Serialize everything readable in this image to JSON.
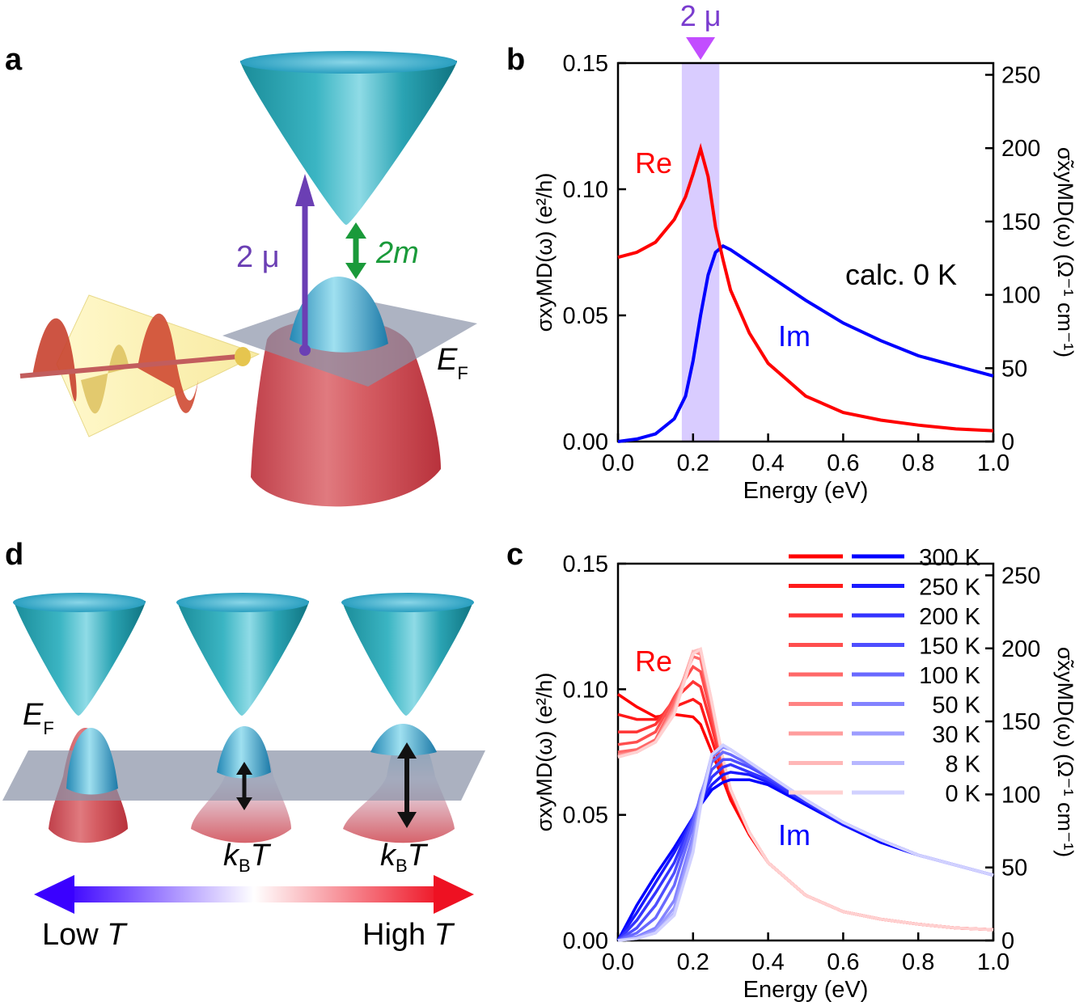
{
  "panels": {
    "a": {
      "letter": "a",
      "arrow_label_mu": "2 μ",
      "arrow_label_m": "2m",
      "fermi_label": "E",
      "fermi_sub": "F"
    },
    "b": {
      "letter": "b",
      "band_label": "2 μ",
      "annotation": "calc. 0 K"
    },
    "c": {
      "letter": "c"
    },
    "d": {
      "letter": "d",
      "fermi_label": "E",
      "fermi_sub": "F",
      "kbt_1": "k",
      "kbt_1_sub": "B",
      "kbt_1_T": "T",
      "kbt_2": "k",
      "kbt_2_sub": "B",
      "kbt_2_T": "T",
      "low_label": "Low ",
      "low_T": "T",
      "high_label": "High ",
      "high_T": "T"
    }
  },
  "colors": {
    "re": "#ff0000",
    "im": "#0000ff",
    "band": "#d9ccff",
    "purple": "#7a3ccf",
    "green": "#1a9a3a"
  },
  "chart_data": [
    {
      "panel": "b",
      "type": "line",
      "xlabel": "Energy (eV)",
      "ylabel_left": "σxyMD(ω) (e²/h)",
      "ylabel_right": "σ̃xyMD(ω) (Ω⁻¹ cm⁻¹)",
      "xlim": [
        0.0,
        1.0
      ],
      "ylim": [
        0.0,
        0.15
      ],
      "ylim_right": [
        0,
        258
      ],
      "xticks": [
        "0.0",
        "0.2",
        "0.4",
        "0.6",
        "0.8",
        "1.0"
      ],
      "yticks": [
        "0.00",
        "0.05",
        "0.10",
        "0.15"
      ],
      "yticks_right": [
        "0",
        "50",
        "100",
        "150",
        "200",
        "250"
      ],
      "shaded_band": [
        0.17,
        0.27
      ],
      "series_labels": {
        "re": "Re",
        "im": "Im"
      },
      "series": [
        {
          "name": "Re",
          "x": [
            0.0,
            0.05,
            0.1,
            0.15,
            0.18,
            0.2,
            0.22,
            0.24,
            0.26,
            0.28,
            0.3,
            0.35,
            0.4,
            0.5,
            0.6,
            0.7,
            0.8,
            0.9,
            1.0
          ],
          "y": [
            0.073,
            0.075,
            0.079,
            0.088,
            0.097,
            0.106,
            0.116,
            0.105,
            0.085,
            0.072,
            0.06,
            0.043,
            0.031,
            0.018,
            0.0115,
            0.0085,
            0.0065,
            0.005,
            0.0043
          ]
        },
        {
          "name": "Im",
          "x": [
            0.0,
            0.05,
            0.1,
            0.15,
            0.18,
            0.2,
            0.22,
            0.24,
            0.26,
            0.28,
            0.3,
            0.35,
            0.4,
            0.5,
            0.6,
            0.7,
            0.8,
            0.9,
            1.0
          ],
          "y": [
            0.0,
            0.001,
            0.003,
            0.009,
            0.018,
            0.032,
            0.05,
            0.066,
            0.075,
            0.0775,
            0.076,
            0.071,
            0.066,
            0.056,
            0.047,
            0.04,
            0.034,
            0.03,
            0.026
          ]
        }
      ]
    },
    {
      "panel": "c",
      "type": "line",
      "xlabel": "Energy (eV)",
      "ylabel_left": "σxyMD(ω) (e²/h)",
      "ylabel_right": "σ̃xyMD(ω) (Ω⁻¹ cm⁻¹)",
      "xlim": [
        0.0,
        1.0
      ],
      "ylim": [
        0.0,
        0.15
      ],
      "ylim_right": [
        0,
        258
      ],
      "xticks": [
        "0.0",
        "0.2",
        "0.4",
        "0.6",
        "0.8",
        "1.0"
      ],
      "yticks": [
        "0.00",
        "0.05",
        "0.10",
        "0.15"
      ],
      "yticks_right": [
        "0",
        "50",
        "100",
        "150",
        "200",
        "250"
      ],
      "series_labels": {
        "re": "Re",
        "im": "Im"
      },
      "legend": [
        "300 K",
        "250 K",
        "200 K",
        "150 K",
        "100 K",
        "50 K",
        "30 K",
        "8 K",
        "0 K"
      ],
      "x": [
        0.0,
        0.05,
        0.1,
        0.15,
        0.2,
        0.22,
        0.25,
        0.28,
        0.3,
        0.35,
        0.4,
        0.5,
        0.6,
        0.7,
        0.8,
        0.9,
        1.0
      ],
      "series": [
        {
          "name": "Re 300 K",
          "y": [
            0.098,
            0.093,
            0.089,
            0.09,
            0.089,
            0.086,
            0.075,
            0.064,
            0.056,
            0.042,
            0.031,
            0.018,
            0.0115,
            0.0085,
            0.0065,
            0.005,
            0.0043
          ]
        },
        {
          "name": "Re 250 K",
          "y": [
            0.09,
            0.088,
            0.088,
            0.093,
            0.096,
            0.094,
            0.08,
            0.066,
            0.058,
            0.043,
            0.031,
            0.018,
            0.0115,
            0.0085,
            0.0065,
            0.005,
            0.0043
          ]
        },
        {
          "name": "Re 200 K",
          "y": [
            0.083,
            0.083,
            0.086,
            0.096,
            0.103,
            0.101,
            0.085,
            0.068,
            0.059,
            0.043,
            0.031,
            0.018,
            0.0115,
            0.0085,
            0.0065,
            0.005,
            0.0043
          ]
        },
        {
          "name": "Re 150 K",
          "y": [
            0.078,
            0.079,
            0.083,
            0.097,
            0.109,
            0.107,
            0.089,
            0.07,
            0.06,
            0.043,
            0.031,
            0.018,
            0.0115,
            0.0085,
            0.0065,
            0.005,
            0.0043
          ]
        },
        {
          "name": "Re 100 K",
          "y": [
            0.075,
            0.076,
            0.08,
            0.095,
            0.113,
            0.112,
            0.092,
            0.071,
            0.06,
            0.043,
            0.031,
            0.018,
            0.0115,
            0.0085,
            0.0065,
            0.005,
            0.0043
          ]
        },
        {
          "name": "Re 50 K",
          "y": [
            0.074,
            0.075,
            0.079,
            0.093,
            0.115,
            0.114,
            0.094,
            0.072,
            0.06,
            0.043,
            0.031,
            0.018,
            0.0115,
            0.0085,
            0.0065,
            0.005,
            0.0043
          ]
        },
        {
          "name": "Re 30 K",
          "y": [
            0.0735,
            0.075,
            0.079,
            0.092,
            0.115,
            0.115,
            0.094,
            0.072,
            0.06,
            0.043,
            0.031,
            0.018,
            0.0115,
            0.0085,
            0.0065,
            0.005,
            0.0043
          ]
        },
        {
          "name": "Re 8 K",
          "y": [
            0.073,
            0.075,
            0.079,
            0.091,
            0.115,
            0.116,
            0.095,
            0.072,
            0.06,
            0.043,
            0.031,
            0.018,
            0.0115,
            0.0085,
            0.0065,
            0.005,
            0.0043
          ]
        },
        {
          "name": "Re 0 K",
          "y": [
            0.073,
            0.075,
            0.079,
            0.09,
            0.114,
            0.116,
            0.095,
            0.072,
            0.06,
            0.043,
            0.031,
            0.018,
            0.0115,
            0.0085,
            0.0065,
            0.005,
            0.0043
          ]
        },
        {
          "name": "Im 300 K",
          "y": [
            0.0,
            0.014,
            0.026,
            0.037,
            0.049,
            0.054,
            0.06,
            0.063,
            0.064,
            0.064,
            0.062,
            0.054,
            0.046,
            0.039,
            0.034,
            0.03,
            0.026
          ]
        },
        {
          "name": "Im 250 K",
          "y": [
            0.0,
            0.011,
            0.023,
            0.035,
            0.049,
            0.055,
            0.062,
            0.066,
            0.067,
            0.066,
            0.063,
            0.055,
            0.046,
            0.04,
            0.034,
            0.03,
            0.026
          ]
        },
        {
          "name": "Im 200 K",
          "y": [
            0.0,
            0.008,
            0.019,
            0.031,
            0.049,
            0.056,
            0.065,
            0.069,
            0.07,
            0.067,
            0.064,
            0.055,
            0.047,
            0.04,
            0.034,
            0.03,
            0.026
          ]
        },
        {
          "name": "Im 150 K",
          "y": [
            0.0,
            0.005,
            0.014,
            0.027,
            0.048,
            0.057,
            0.068,
            0.072,
            0.072,
            0.069,
            0.065,
            0.056,
            0.047,
            0.04,
            0.034,
            0.03,
            0.026
          ]
        },
        {
          "name": "Im 100 K",
          "y": [
            0.0,
            0.003,
            0.009,
            0.022,
            0.046,
            0.058,
            0.071,
            0.075,
            0.074,
            0.07,
            0.066,
            0.056,
            0.047,
            0.04,
            0.034,
            0.03,
            0.026
          ]
        },
        {
          "name": "Im 50 K",
          "y": [
            0.0,
            0.0015,
            0.005,
            0.016,
            0.042,
            0.057,
            0.073,
            0.077,
            0.076,
            0.071,
            0.066,
            0.056,
            0.047,
            0.04,
            0.034,
            0.03,
            0.026
          ]
        },
        {
          "name": "Im 30 K",
          "y": [
            0.0,
            0.001,
            0.004,
            0.013,
            0.039,
            0.056,
            0.074,
            0.0775,
            0.076,
            0.071,
            0.066,
            0.056,
            0.047,
            0.04,
            0.034,
            0.03,
            0.026
          ]
        },
        {
          "name": "Im 8 K",
          "y": [
            0.0,
            0.0008,
            0.003,
            0.011,
            0.036,
            0.054,
            0.074,
            0.0778,
            0.076,
            0.071,
            0.066,
            0.056,
            0.047,
            0.04,
            0.034,
            0.03,
            0.026
          ]
        },
        {
          "name": "Im 0 K",
          "y": [
            0.0,
            0.0008,
            0.003,
            0.01,
            0.035,
            0.053,
            0.074,
            0.0778,
            0.076,
            0.071,
            0.066,
            0.056,
            0.047,
            0.04,
            0.034,
            0.03,
            0.026
          ]
        }
      ]
    }
  ]
}
